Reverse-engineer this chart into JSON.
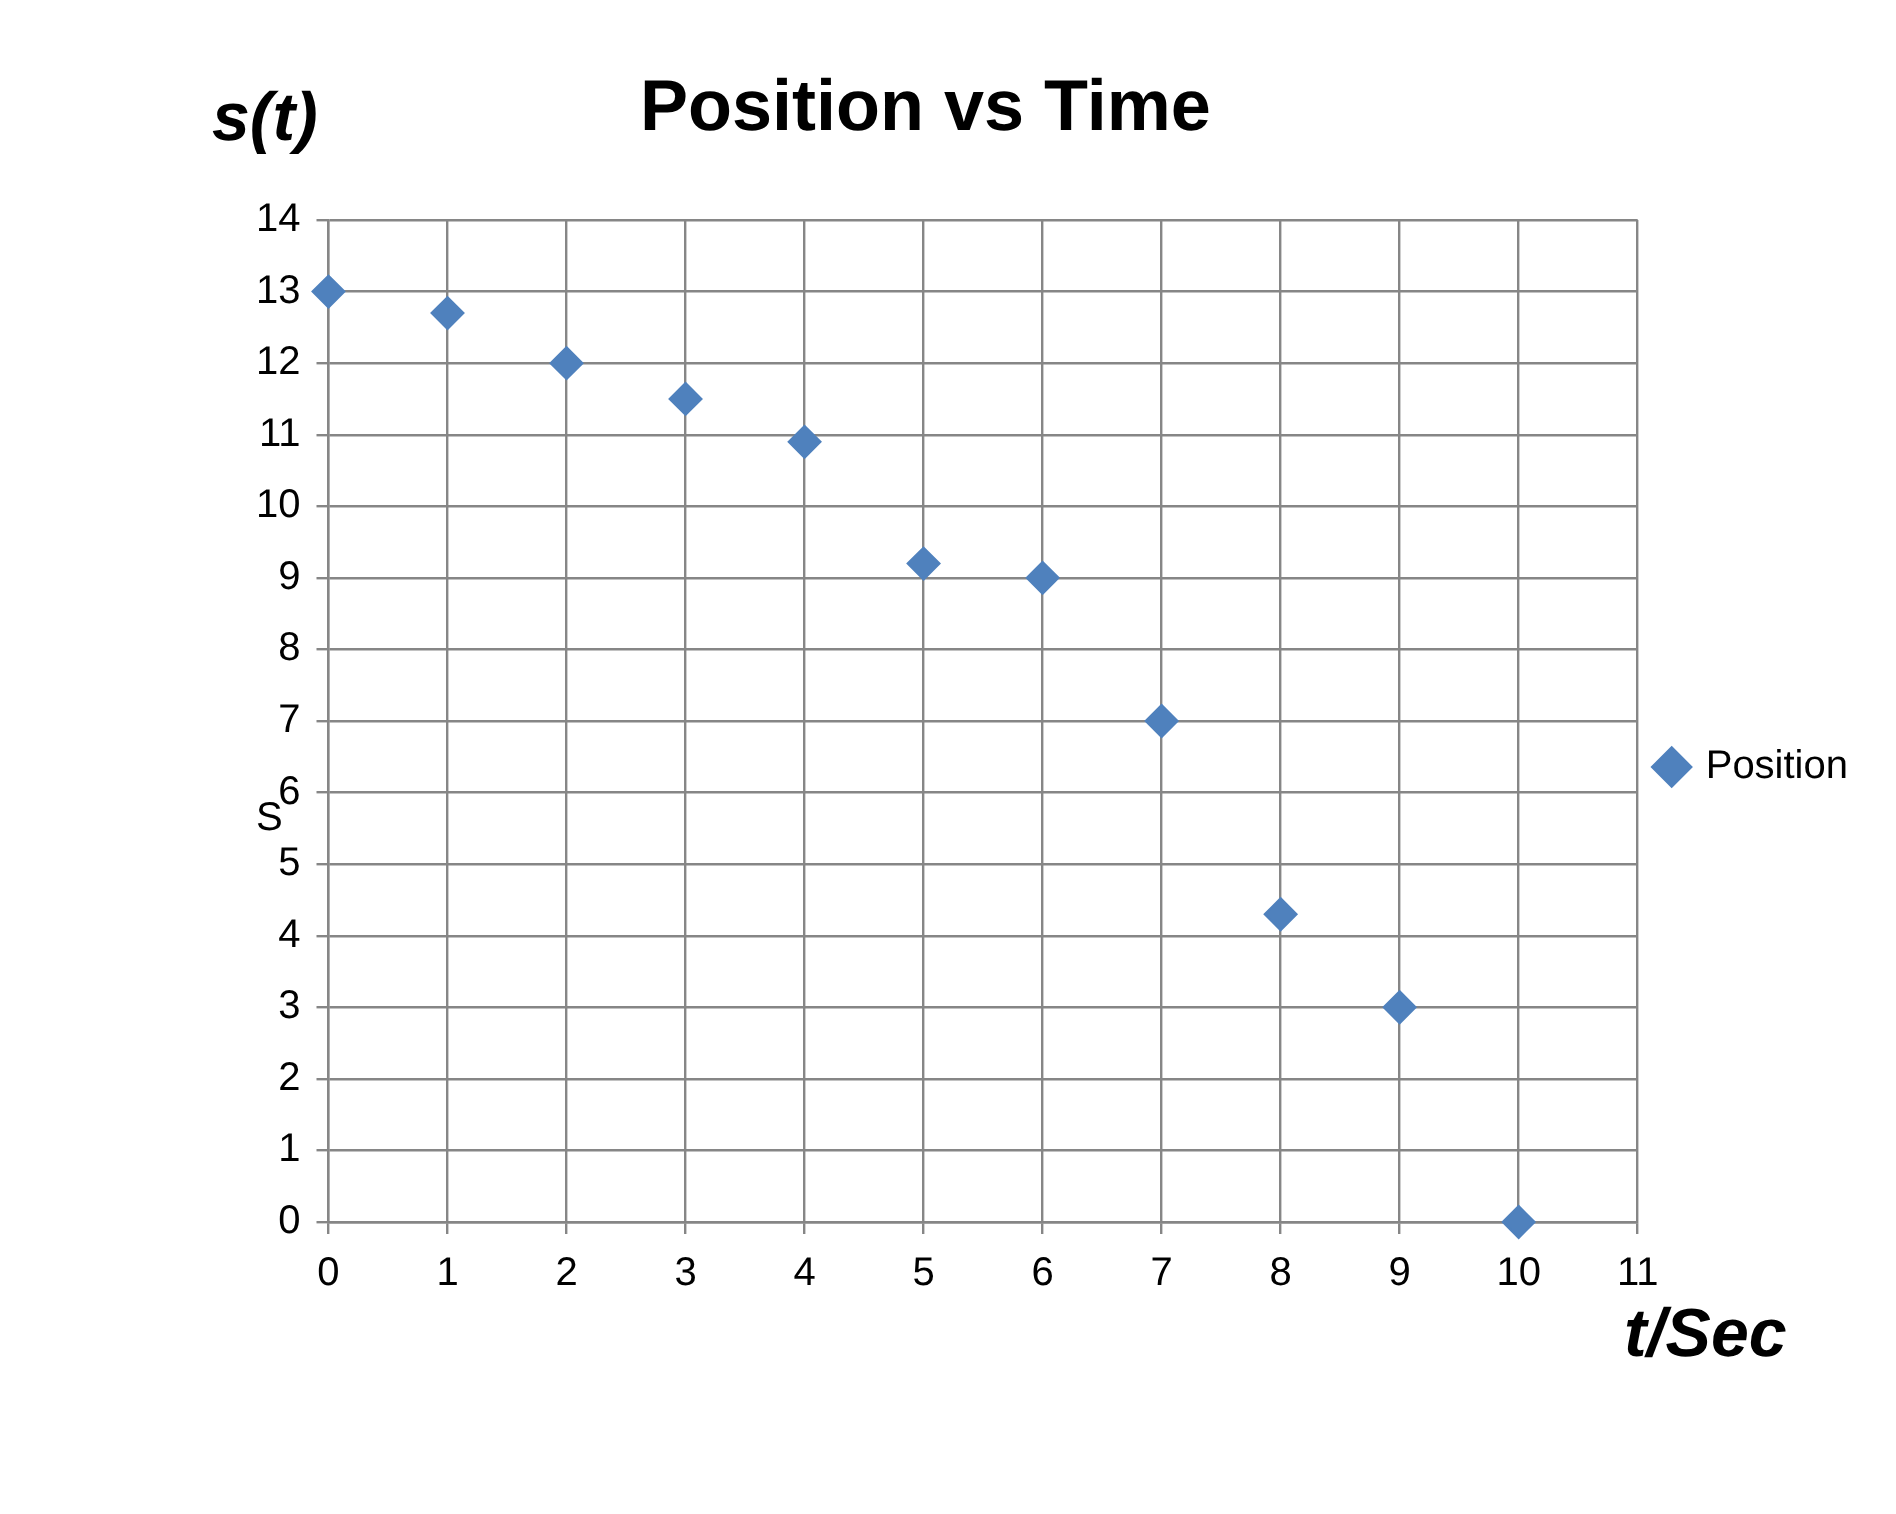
{
  "chart_data": {
    "type": "scatter",
    "title": "Position vs Time",
    "xlabel": "t/Sec",
    "ylabel": "s(t)",
    "annotations": [
      "S"
    ],
    "x": [
      0,
      1,
      2,
      3,
      4,
      5,
      6,
      7,
      8,
      9,
      10
    ],
    "series": [
      {
        "name": "Position",
        "color": "#4f81bd",
        "values": [
          13,
          12.7,
          12,
          11.5,
          10.9,
          9.2,
          9,
          7,
          4.3,
          3,
          0
        ]
      }
    ],
    "xlim": [
      0,
      11
    ],
    "xticks": [
      0,
      1,
      2,
      3,
      4,
      5,
      6,
      7,
      8,
      9,
      10,
      11
    ],
    "ylim": [
      0,
      14
    ],
    "yticks": [
      0,
      1,
      2,
      3,
      4,
      5,
      6,
      7,
      8,
      9,
      10,
      11,
      12,
      13,
      14
    ],
    "grid": true,
    "legend": "right",
    "marker": "diamond"
  }
}
